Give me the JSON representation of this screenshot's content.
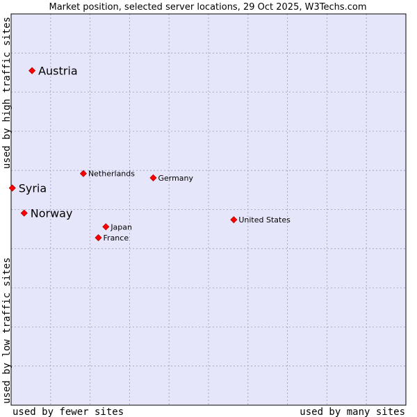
{
  "chart_data": {
    "type": "scatter",
    "title": "Market position, selected server locations, 29 Oct 2025, W3Techs.com",
    "xlabel_left": "used by fewer sites",
    "xlabel_right": "used by many sites",
    "ylabel_bottom": "used by low traffic sites",
    "ylabel_top": "used by high traffic sites",
    "xlim": [
      0,
      100
    ],
    "ylim": [
      0,
      100
    ],
    "grid": true,
    "colors": {
      "plot_bg": "#e6e6fa",
      "grid": "#9a9ab8",
      "border": "#000000",
      "point": "#ff0000",
      "point_edge": "#b00000"
    },
    "points": [
      {
        "name": "Austria",
        "x": 5.3,
        "y": 85.5,
        "emphasis": true
      },
      {
        "name": "Syria",
        "x": 0.3,
        "y": 55.5,
        "emphasis": true
      },
      {
        "name": "Norway",
        "x": 3.3,
        "y": 49.1,
        "emphasis": true
      },
      {
        "name": "Netherlands",
        "x": 18.3,
        "y": 59.2,
        "emphasis": false
      },
      {
        "name": "Germany",
        "x": 36.0,
        "y": 58.1,
        "emphasis": false
      },
      {
        "name": "United States",
        "x": 56.4,
        "y": 47.4,
        "emphasis": false
      },
      {
        "name": "Japan",
        "x": 24.0,
        "y": 45.6,
        "emphasis": false
      },
      {
        "name": "France",
        "x": 22.1,
        "y": 42.8,
        "emphasis": false
      }
    ]
  }
}
